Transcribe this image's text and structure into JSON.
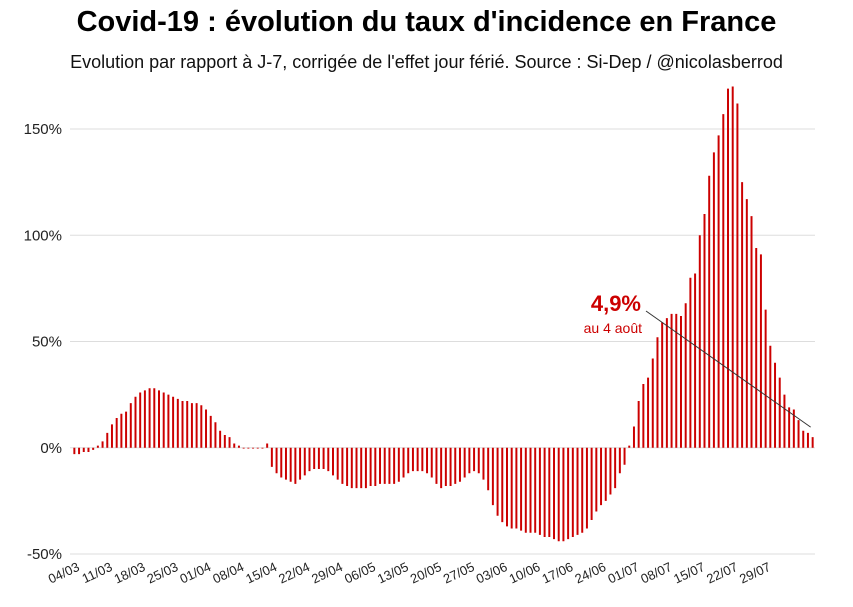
{
  "title": "Covid-19 : évolution du taux d'incidence en France",
  "subtitle": "Evolution par rapport à J-7, corrigée de l'effet jour férié. Source : Si-Dep  / @nicolasberrod",
  "colors": {
    "bar": "#cc0000",
    "annotation": "#cc0000",
    "grid": "#dddddd"
  },
  "annotation": {
    "value": "4,9%",
    "caption": "au 4 août"
  },
  "chart_data": {
    "type": "bar",
    "ylim": [
      -50,
      170
    ],
    "yticks": [
      {
        "value": 150,
        "label": "150%"
      },
      {
        "value": 100,
        "label": "100%"
      },
      {
        "value": 50,
        "label": "50%"
      },
      {
        "value": 0,
        "label": "0%"
      },
      {
        "value": -50,
        "label": "-50%"
      }
    ],
    "grid": true,
    "xticks": [
      {
        "index": 0,
        "label": "04/03"
      },
      {
        "index": 7,
        "label": "11/03"
      },
      {
        "index": 14,
        "label": "18/03"
      },
      {
        "index": 21,
        "label": "25/03"
      },
      {
        "index": 28,
        "label": "01/04"
      },
      {
        "index": 35,
        "label": "08/04"
      },
      {
        "index": 42,
        "label": "15/04"
      },
      {
        "index": 49,
        "label": "22/04"
      },
      {
        "index": 56,
        "label": "29/04"
      },
      {
        "index": 63,
        "label": "06/05"
      },
      {
        "index": 70,
        "label": "13/05"
      },
      {
        "index": 77,
        "label": "20/05"
      },
      {
        "index": 84,
        "label": "27/05"
      },
      {
        "index": 91,
        "label": "03/06"
      },
      {
        "index": 98,
        "label": "10/06"
      },
      {
        "index": 105,
        "label": "17/06"
      },
      {
        "index": 112,
        "label": "24/06"
      },
      {
        "index": 119,
        "label": "01/07"
      },
      {
        "index": 126,
        "label": "08/07"
      },
      {
        "index": 133,
        "label": "15/07"
      },
      {
        "index": 140,
        "label": "22/07"
      },
      {
        "index": 147,
        "label": "29/07"
      }
    ],
    "values": [
      -3,
      -3,
      -2,
      -2,
      -1,
      1,
      3,
      7,
      11,
      14,
      16,
      17,
      21,
      24,
      26,
      27,
      28,
      28,
      27,
      26,
      25,
      24,
      23,
      22,
      22,
      21,
      21,
      20,
      18,
      15,
      12,
      8,
      6,
      5,
      2,
      1,
      0,
      0,
      0,
      0,
      0,
      2,
      -9,
      -12,
      -14,
      -15,
      -16,
      -17,
      -15,
      -13,
      -11,
      -10,
      -10,
      -10,
      -11,
      -13,
      -15,
      -17,
      -18,
      -19,
      -19,
      -19,
      -19,
      -18,
      -18,
      -17,
      -17,
      -17,
      -17,
      -16,
      -14,
      -12,
      -11,
      -11,
      -11,
      -12,
      -14,
      -17,
      -19,
      -18,
      -18,
      -17,
      -16,
      -14,
      -12,
      -11,
      -12,
      -15,
      -20,
      -27,
      -32,
      -35,
      -37,
      -38,
      -38,
      -39,
      -40,
      -40,
      -40,
      -41,
      -42,
      -42,
      -43,
      -44,
      -44,
      -43,
      -42,
      -41,
      -40,
      -38,
      -34,
      -30,
      -27,
      -25,
      -22,
      -19,
      -12,
      -8,
      1,
      10,
      22,
      30,
      33,
      42,
      52,
      59,
      61,
      63,
      63,
      62,
      68,
      80,
      82,
      100,
      110,
      128,
      139,
      147,
      157,
      169,
      170,
      162,
      125,
      117,
      109,
      94,
      91,
      65,
      48,
      40,
      33,
      25,
      19,
      18,
      13,
      8,
      7,
      5
    ]
  }
}
